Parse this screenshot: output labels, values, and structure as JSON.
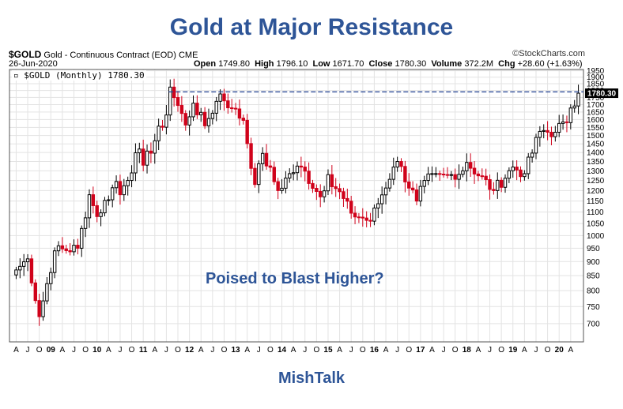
{
  "title": "Gold at Major Resistance",
  "symbol": "$GOLD",
  "description": "Gold - Continuous Contract (EOD)",
  "exchange": "CME",
  "copyright": "©StockCharts.com",
  "date": "26-Jun-2020",
  "ohlc": {
    "open_label": "Open",
    "open": "1749.80",
    "high_label": "High",
    "high": "1796.10",
    "low_label": "Low",
    "low": "1671.70",
    "close_label": "Close",
    "close": "1780.30",
    "volume_label": "Volume",
    "volume": "372.2M",
    "chg_label": "Chg",
    "chg": "+28.60 (+1.63%)"
  },
  "legend": "$GOLD (Monthly) 1780.30",
  "annotation": "Poised to Blast Higher?",
  "brand": "MishTalk",
  "colors": {
    "accent": "#2e5597",
    "up": "#000000",
    "down": "#d0021b",
    "resistance": "#1f3f8f"
  },
  "chart_data": {
    "type": "candlestick",
    "y_scale": "log",
    "ylim": [
      650,
      1960
    ],
    "yticks": [
      700,
      750,
      800,
      850,
      900,
      950,
      1000,
      1050,
      1100,
      1150,
      1200,
      1250,
      1300,
      1350,
      1400,
      1450,
      1500,
      1550,
      1600,
      1650,
      1700,
      1750,
      1800,
      1850,
      1900,
      1950
    ],
    "last_price_label": "1780.30",
    "resistance_level": 1790,
    "x_start": "2008-04",
    "x_labels": [
      "A",
      "J",
      "O",
      "09",
      "A",
      "J",
      "O",
      "10",
      "A",
      "J",
      "O",
      "11",
      "A",
      "J",
      "O",
      "12",
      "A",
      "J",
      "O",
      "13",
      "A",
      "J",
      "O",
      "14",
      "A",
      "J",
      "O",
      "15",
      "A",
      "J",
      "O",
      "16",
      "A",
      "J",
      "O",
      "17",
      "A",
      "J",
      "O",
      "18",
      "A",
      "J",
      "O",
      "19",
      "A",
      "J",
      "O",
      "20",
      "A"
    ],
    "anchors": [
      {
        "date": "2008-04",
        "close": 870
      },
      {
        "date": "2008-07",
        "close": 910
      },
      {
        "date": "2008-10",
        "close": 720
      },
      {
        "date": "2009-02",
        "close": 940
      },
      {
        "date": "2009-08",
        "close": 950
      },
      {
        "date": "2009-11",
        "close": 1180
      },
      {
        "date": "2010-01",
        "close": 1080
      },
      {
        "date": "2010-06",
        "close": 1245
      },
      {
        "date": "2010-07",
        "close": 1180
      },
      {
        "date": "2010-12",
        "close": 1420
      },
      {
        "date": "2011-01",
        "close": 1330
      },
      {
        "date": "2011-07",
        "close": 1630
      },
      {
        "date": "2011-08",
        "close": 1825
      },
      {
        "date": "2011-12",
        "close": 1565
      },
      {
        "date": "2012-02",
        "close": 1710
      },
      {
        "date": "2012-05",
        "close": 1560
      },
      {
        "date": "2012-09",
        "close": 1775
      },
      {
        "date": "2012-12",
        "close": 1675
      },
      {
        "date": "2013-03",
        "close": 1595
      },
      {
        "date": "2013-06",
        "close": 1230
      },
      {
        "date": "2013-08",
        "close": 1395
      },
      {
        "date": "2013-12",
        "close": 1200
      },
      {
        "date": "2014-03",
        "close": 1285
      },
      {
        "date": "2014-06",
        "close": 1320
      },
      {
        "date": "2014-11",
        "close": 1170
      },
      {
        "date": "2015-01",
        "close": 1280
      },
      {
        "date": "2015-07",
        "close": 1095
      },
      {
        "date": "2015-12",
        "close": 1060
      },
      {
        "date": "2016-06",
        "close": 1320
      },
      {
        "date": "2016-07",
        "close": 1350
      },
      {
        "date": "2016-12",
        "close": 1150
      },
      {
        "date": "2017-02",
        "close": 1250
      },
      {
        "date": "2017-09",
        "close": 1280
      },
      {
        "date": "2017-12",
        "close": 1300
      },
      {
        "date": "2018-01",
        "close": 1345
      },
      {
        "date": "2018-08",
        "close": 1200
      },
      {
        "date": "2019-01",
        "close": 1320
      },
      {
        "date": "2019-04",
        "close": 1285
      },
      {
        "date": "2019-08",
        "close": 1525
      },
      {
        "date": "2019-12",
        "close": 1520
      },
      {
        "date": "2020-02",
        "close": 1585
      },
      {
        "date": "2020-03",
        "close": 1580
      },
      {
        "date": "2020-06",
        "close": 1780.3
      }
    ]
  }
}
